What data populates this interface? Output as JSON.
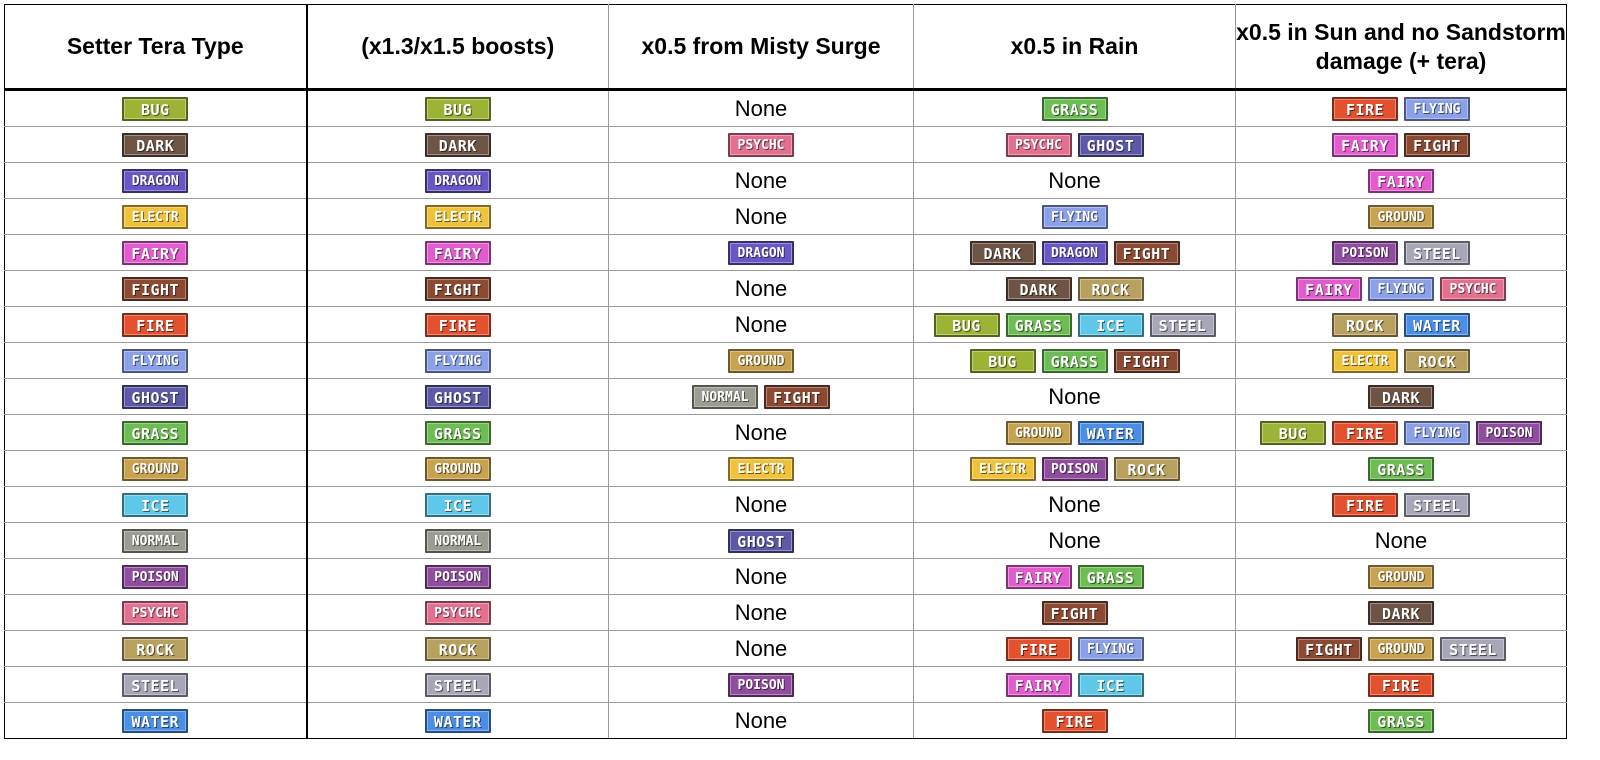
{
  "headers": [
    "Setter Tera Type",
    "(x1.3/x1.5 boosts)",
    "x0.5 from Misty Surge",
    "x0.5 in Rain",
    "x0.5 in Sun and no Sandstorm damage (+ tera)"
  ],
  "none_label": "None",
  "type_colors": {
    "BUG": "#9bb436",
    "DARK": "#6e5445",
    "DRAGON": "#6a56c6",
    "ELECTR": "#f0c23a",
    "FAIRY": "#e35ccf",
    "FIGHT": "#8c4a33",
    "FIRE": "#e4512f",
    "FLYING": "#8aa0e8",
    "GHOST": "#5d58a8",
    "GRASS": "#6cbd52",
    "GROUND": "#c8a24e",
    "ICE": "#5fc8e8",
    "NORMAL": "#9c9c92",
    "POISON": "#904d9f",
    "PSYCHC": "#e3708f",
    "ROCK": "#b8a05e",
    "STEEL": "#a7a7b8",
    "WATER": "#4a8ee6"
  },
  "rows": [
    {
      "setter": "BUG",
      "boosts": "BUG",
      "misty": [],
      "rain": [
        "GRASS"
      ],
      "sun": [
        "FIRE",
        "FLYING"
      ]
    },
    {
      "setter": "DARK",
      "boosts": "DARK",
      "misty": [
        "PSYCHC"
      ],
      "rain": [
        "PSYCHC",
        "GHOST"
      ],
      "sun": [
        "FAIRY",
        "FIGHT"
      ]
    },
    {
      "setter": "DRAGON",
      "boosts": "DRAGON",
      "misty": [],
      "rain": [],
      "sun": [
        "FAIRY"
      ]
    },
    {
      "setter": "ELECTR",
      "boosts": "ELECTR",
      "misty": [],
      "rain": [
        "FLYING"
      ],
      "sun": [
        "GROUND"
      ]
    },
    {
      "setter": "FAIRY",
      "boosts": "FAIRY",
      "misty": [
        "DRAGON"
      ],
      "rain": [
        "DARK",
        "DRAGON",
        "FIGHT"
      ],
      "sun": [
        "POISON",
        "STEEL"
      ]
    },
    {
      "setter": "FIGHT",
      "boosts": "FIGHT",
      "misty": [],
      "rain": [
        "DARK",
        "ROCK"
      ],
      "sun": [
        "FAIRY",
        "FLYING",
        "PSYCHC"
      ]
    },
    {
      "setter": "FIRE",
      "boosts": "FIRE",
      "misty": [],
      "rain": [
        "BUG",
        "GRASS",
        "ICE",
        "STEEL"
      ],
      "sun": [
        "ROCK",
        "WATER"
      ]
    },
    {
      "setter": "FLYING",
      "boosts": "FLYING",
      "misty": [
        "GROUND"
      ],
      "rain": [
        "BUG",
        "GRASS",
        "FIGHT"
      ],
      "sun": [
        "ELECTR",
        "ROCK"
      ]
    },
    {
      "setter": "GHOST",
      "boosts": "GHOST",
      "misty": [
        "NORMAL",
        "FIGHT"
      ],
      "rain": [],
      "sun": [
        "DARK"
      ]
    },
    {
      "setter": "GRASS",
      "boosts": "GRASS",
      "misty": [],
      "rain": [
        "GROUND",
        "WATER"
      ],
      "sun": [
        "BUG",
        "FIRE",
        "FLYING",
        "POISON"
      ]
    },
    {
      "setter": "GROUND",
      "boosts": "GROUND",
      "misty": [
        "ELECTR"
      ],
      "rain": [
        "ELECTR",
        "POISON",
        "ROCK"
      ],
      "sun": [
        "GRASS"
      ]
    },
    {
      "setter": "ICE",
      "boosts": "ICE",
      "misty": [],
      "rain": [],
      "sun": [
        "FIRE",
        "STEEL"
      ]
    },
    {
      "setter": "NORMAL",
      "boosts": "NORMAL",
      "misty": [
        "GHOST"
      ],
      "rain": [],
      "sun": []
    },
    {
      "setter": "POISON",
      "boosts": "POISON",
      "misty": [],
      "rain": [
        "FAIRY",
        "GRASS"
      ],
      "sun": [
        "GROUND"
      ]
    },
    {
      "setter": "PSYCHC",
      "boosts": "PSYCHC",
      "misty": [],
      "rain": [
        "FIGHT"
      ],
      "sun": [
        "DARK"
      ]
    },
    {
      "setter": "ROCK",
      "boosts": "ROCK",
      "misty": [],
      "rain": [
        "FIRE",
        "FLYING"
      ],
      "sun": [
        "FIGHT",
        "GROUND",
        "STEEL"
      ]
    },
    {
      "setter": "STEEL",
      "boosts": "STEEL",
      "misty": [
        "POISON"
      ],
      "rain": [
        "FAIRY",
        "ICE"
      ],
      "sun": [
        "FIRE"
      ]
    },
    {
      "setter": "WATER",
      "boosts": "WATER",
      "misty": [],
      "rain": [
        "FIRE"
      ],
      "sun": [
        "GRASS"
      ]
    }
  ]
}
